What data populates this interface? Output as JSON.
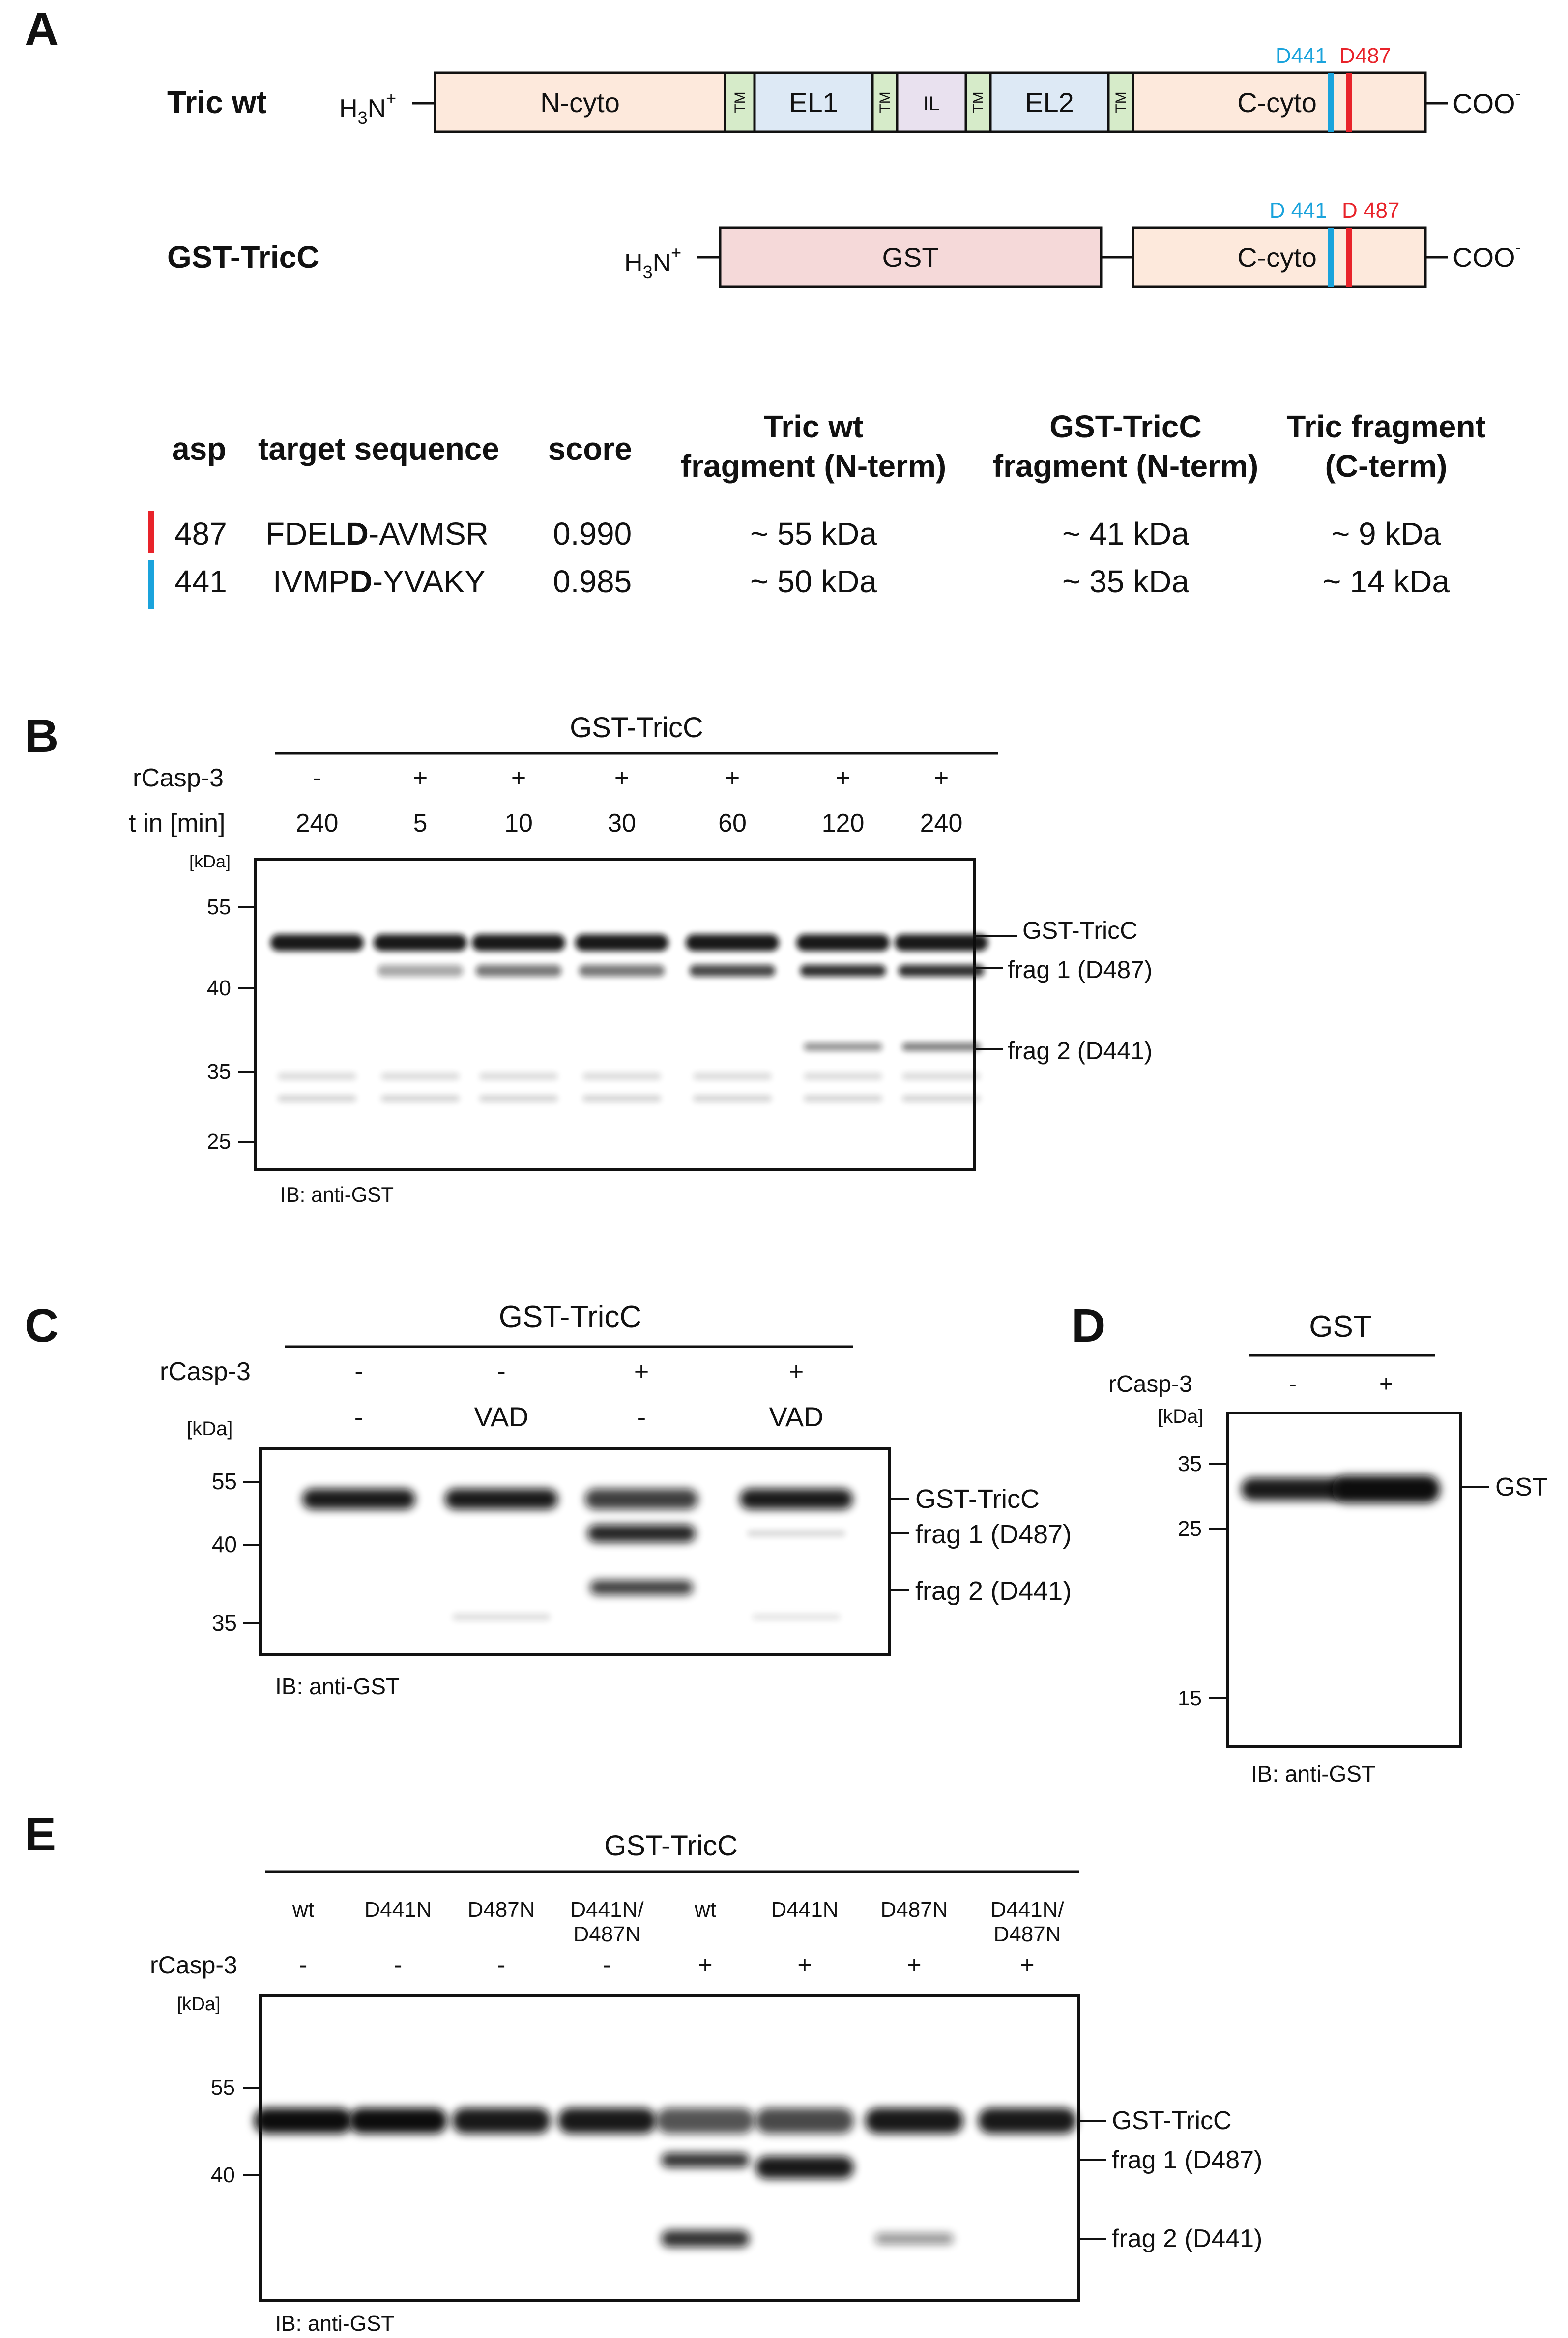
{
  "panel_letters": {
    "a": "A",
    "b": "B",
    "c": "C",
    "d": "D",
    "e": "E"
  },
  "panel_a": {
    "constructs": [
      {
        "name": "Tric wt",
        "n_term": "H3N+",
        "c_term": "COO-",
        "domains": [
          "N-cyto",
          "TM",
          "EL1",
          "TM",
          "IL",
          "TM",
          "EL2",
          "TM",
          "C-cyto"
        ],
        "sites": [
          "D441",
          "D487"
        ]
      },
      {
        "name": "GST-TricC",
        "n_term": "H3N+",
        "c_term": "COO-",
        "domains": [
          "GST",
          "C-cyto"
        ],
        "sites": [
          "D 441",
          "D 487"
        ]
      }
    ],
    "table": {
      "headers": [
        "asp",
        "target sequence",
        "score",
        "Tric wt fragment (N-term)",
        "GST-TricC fragment (N-term)",
        "Tric fragment (C-term)"
      ],
      "header_lines": {
        "asp": "asp",
        "seq": "target sequence",
        "score": "score",
        "tric_1": "Tric wt",
        "tric_2": "fragment (N-term)",
        "gst_1": "GST-TricC",
        "gst_2": "fragment (N-term)",
        "cterm_1": "Tric fragment",
        "cterm_2": "(C-term)"
      },
      "rows": [
        {
          "asp": "487",
          "seq_pre": "FDEL",
          "seq_d": "D",
          "seq_post": "-AVMSR",
          "score": "0.990",
          "tric_wt": "~ 55 kDa",
          "gst_tricc": "~ 41 kDa",
          "c_term": "~ 9 kDa",
          "marker": "#e8232a"
        },
        {
          "asp": "441",
          "seq_pre": "IVMP",
          "seq_d": "D",
          "seq_post": "-YVAKY",
          "score": "0.985",
          "tric_wt": "~ 50 kDa",
          "gst_tricc": "~ 35 kDa",
          "c_term": "~ 14 kDa",
          "marker": "#1aa3dc"
        }
      ]
    }
  },
  "panel_b": {
    "title": "GST-TricC",
    "row_labels": [
      "rCasp-3",
      "t in [min]"
    ],
    "casp": [
      "-",
      "+",
      "+",
      "+",
      "+",
      "+",
      "+"
    ],
    "time": [
      "240",
      "5",
      "10",
      "30",
      "60",
      "120",
      "240"
    ],
    "kda_unit": "[kDa]",
    "markers": [
      "55",
      "40",
      "35",
      "25"
    ],
    "band_labels": [
      "GST-TricC",
      "frag 1 (D487)",
      "frag 2 (D441)"
    ],
    "ib": "IB: anti-GST"
  },
  "panel_c": {
    "title": "GST-TricC",
    "row_label": "rCasp-3",
    "casp": [
      "-",
      "-",
      "+",
      "+"
    ],
    "inhibitor": [
      "-",
      "VAD",
      "-",
      "VAD"
    ],
    "kda_unit": "[kDa]",
    "markers": [
      "55",
      "40",
      "35"
    ],
    "band_labels": [
      "GST-TricC",
      "frag 1 (D487)",
      "frag 2 (D441)"
    ],
    "ib": "IB: anti-GST"
  },
  "panel_d": {
    "title": "GST",
    "row_label": "rCasp-3",
    "casp": [
      "-",
      "+"
    ],
    "kda_unit": "[kDa]",
    "markers": [
      "35",
      "25",
      "15"
    ],
    "band_labels": [
      "GST"
    ],
    "ib": "IB: anti-GST"
  },
  "panel_e": {
    "title": "GST-TricC",
    "lanes": [
      "wt",
      "D441N",
      "D487N",
      "D441N/",
      "wt",
      "D441N",
      "D487N",
      "D441N/"
    ],
    "lanes_line2": [
      "",
      "",
      "",
      "D487N",
      "",
      "",
      "",
      "D487N"
    ],
    "row_label": "rCasp-3",
    "casp": [
      "-",
      "-",
      "-",
      "-",
      "+",
      "+",
      "+",
      "+"
    ],
    "kda_unit": "[kDa]",
    "markers": [
      "55",
      "40"
    ],
    "band_labels": [
      "GST-TricC",
      "frag 1 (D487)",
      "frag 2 (D441)"
    ],
    "ib": "IB: anti-GST"
  },
  "colors": {
    "cyto": "#fde9dc",
    "tm": "#d6ebc9",
    "el": "#dde9f5",
    "il": "#e9e1ef",
    "gst": "#f5d9d9",
    "d441": "#1aa3dc",
    "d487": "#e8232a"
  }
}
